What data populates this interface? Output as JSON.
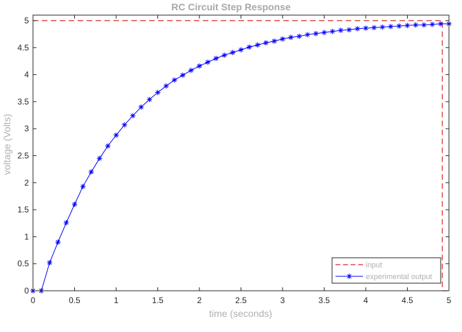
{
  "chart_data": {
    "type": "line",
    "title": "RC Circuit Step Response",
    "xlabel": "time (seconds)",
    "ylabel": "voltage (Volts)",
    "xlim": [
      0,
      5
    ],
    "ylim": [
      0,
      5
    ],
    "xticks": [
      "0",
      "0.5",
      "1",
      "1.5",
      "2",
      "2.5",
      "3",
      "3.5",
      "4",
      "4.5",
      "5"
    ],
    "yticks": [
      "0",
      "0.5",
      "1",
      "1.5",
      "2",
      "2.5",
      "3",
      "3.5",
      "4",
      "4.5",
      "5"
    ],
    "grid": false,
    "legend_position": "bottom-right",
    "series": [
      {
        "name": "input",
        "style": "dashed",
        "marker": "none",
        "color": "#d62728",
        "x": [
          0,
          4.92,
          4.92,
          5
        ],
        "y": [
          5,
          5,
          0,
          0
        ]
      },
      {
        "name": "experimental output",
        "style": "solid",
        "marker": "asterisk",
        "color": "#0000ff",
        "x": [
          0,
          0.1,
          0.2,
          0.3,
          0.4,
          0.5,
          0.6,
          0.7,
          0.8,
          0.9,
          1.0,
          1.1,
          1.2,
          1.3,
          1.4,
          1.5,
          1.6,
          1.7,
          1.8,
          1.9,
          2.0,
          2.1,
          2.2,
          2.3,
          2.4,
          2.5,
          2.6,
          2.7,
          2.8,
          2.9,
          3.0,
          3.1,
          3.2,
          3.3,
          3.4,
          3.5,
          3.6,
          3.7,
          3.8,
          3.9,
          4.0,
          4.1,
          4.2,
          4.3,
          4.4,
          4.5,
          4.6,
          4.7,
          4.8,
          4.9,
          5.0
        ],
        "y": [
          0,
          0,
          0.52,
          0.9,
          1.26,
          1.6,
          1.93,
          2.2,
          2.45,
          2.68,
          2.88,
          3.07,
          3.24,
          3.4,
          3.54,
          3.67,
          3.79,
          3.9,
          3.99,
          4.08,
          4.16,
          4.23,
          4.3,
          4.36,
          4.41,
          4.46,
          4.51,
          4.55,
          4.59,
          4.62,
          4.66,
          4.69,
          4.71,
          4.74,
          4.76,
          4.78,
          4.8,
          4.82,
          4.83,
          4.85,
          4.86,
          4.87,
          4.88,
          4.89,
          4.9,
          4.91,
          4.92,
          4.92,
          4.93,
          4.94,
          4.94
        ]
      }
    ]
  }
}
